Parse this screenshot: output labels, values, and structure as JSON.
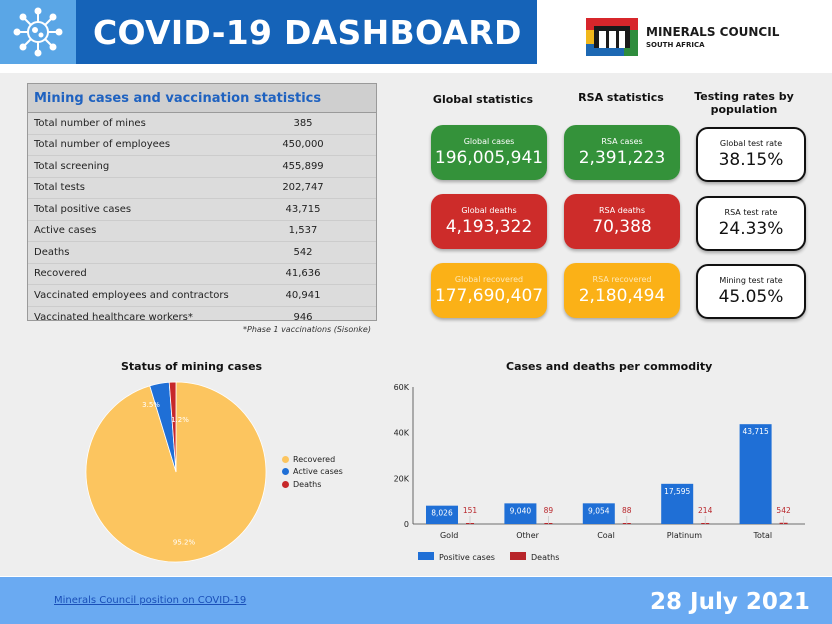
{
  "header": {
    "title": "COVID-19 DASHBOARD",
    "logo_line1": "MINERALS COUNCIL",
    "logo_line2": "SOUTH AFRICA",
    "icon": "virus-icon",
    "brand_colors": {
      "dark_blue": "#1563b8",
      "light_blue": "#5aa6e6"
    }
  },
  "mining_table": {
    "title": "Mining cases and vaccination statistics",
    "rows": [
      {
        "label": "Total number of mines",
        "value": "385"
      },
      {
        "label": "Total number of employees",
        "value": "450,000"
      },
      {
        "label": "Total screening",
        "value": "455,899"
      },
      {
        "label": "Total tests",
        "value": "202,747"
      },
      {
        "label": "Total positive cases",
        "value": "43,715"
      },
      {
        "label": "Active cases",
        "value": "1,537"
      },
      {
        "label": "Deaths",
        "value": "542"
      },
      {
        "label": "Recovered",
        "value": "41,636"
      },
      {
        "label": "Vaccinated employees and contractors",
        "value": "40,941"
      },
      {
        "label": "Vaccinated healthcare workers*",
        "value": "946"
      }
    ],
    "footnote": "*Phase 1 vaccinations (Sisonke)"
  },
  "stats": {
    "global_title": "Global statistics",
    "rsa_title": "RSA statistics",
    "testing_title_line1": "Testing rates by",
    "testing_title_line2": "population",
    "global_cases": {
      "label": "Global cases",
      "value": "196,005,941"
    },
    "global_deaths": {
      "label": "Global deaths",
      "value": "4,193,322"
    },
    "global_recovered": {
      "label": "Global recovered",
      "value": "177,690,407"
    },
    "rsa_cases": {
      "label": "RSA cases",
      "value": "2,391,223"
    },
    "rsa_deaths": {
      "label": "RSA deaths",
      "value": "70,388"
    },
    "rsa_recovered": {
      "label": "RSA recovered",
      "value": "2,180,494"
    },
    "global_test_rate": {
      "label": "Global test rate",
      "value": "38.15%"
    },
    "rsa_test_rate": {
      "label": "RSA test rate",
      "value": "24.33%"
    },
    "mining_test_rate": {
      "label": "Mining test rate",
      "value": "45.05%"
    },
    "colors": {
      "cases": "#34923a",
      "deaths": "#cd2c2a",
      "recovered": "#fbb117"
    }
  },
  "chart_data": [
    {
      "type": "pie",
      "title": "Status of mining cases",
      "labels": [
        "Recovered",
        "Active cases",
        "Deaths"
      ],
      "values": [
        95.2,
        3.5,
        1.2
      ],
      "value_labels": [
        "95.2%",
        "3.5%",
        "1.2%"
      ],
      "colors": [
        "#fcc55f",
        "#1f6fd6",
        "#c7282a"
      ],
      "legend": "right"
    },
    {
      "type": "bar",
      "title": "Cases and deaths per commodity",
      "categories": [
        "Gold",
        "Other",
        "Coal",
        "Platinum",
        "Total"
      ],
      "series": [
        {
          "name": "Positive cases",
          "values": [
            8026,
            9040,
            9054,
            17595,
            43715
          ],
          "color": "#1f6fd6"
        },
        {
          "name": "Deaths",
          "values": [
            151,
            89,
            88,
            214,
            542
          ],
          "color": "#b8252a"
        }
      ],
      "value_labels": {
        "Positive cases": [
          "8,026",
          "9,040",
          "9,054",
          "17,595",
          "43,715"
        ],
        "Deaths": [
          "151",
          "89",
          "88",
          "214",
          "542"
        ]
      },
      "ylim": [
        0,
        60000
      ],
      "yticks": [
        0,
        20000,
        40000,
        60000
      ],
      "ytick_labels": [
        "0",
        "20K",
        "40K",
        "60K"
      ],
      "legend": "bottom-left",
      "grid": false
    }
  ],
  "footer": {
    "link": "Minerals Council position on COVID-19",
    "date": "28 July 2021"
  }
}
